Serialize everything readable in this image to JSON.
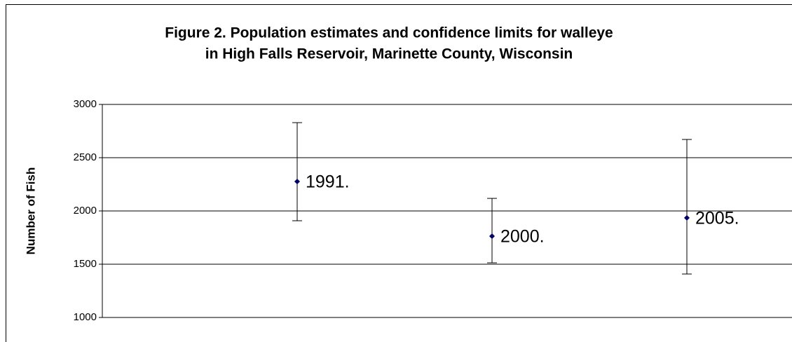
{
  "chart_data": {
    "type": "errorbar",
    "title": [
      "Figure 2. Population estimates and confidence limits for walleye",
      "in High Falls Reservoir, Marinette County, Wisconsin"
    ],
    "y_label": "Number of Fish",
    "categories": [
      "1991.",
      "2000.",
      "2005."
    ],
    "values": [
      2276,
      1763,
      1935
    ],
    "upper": [
      2829,
      2118,
      2671
    ],
    "lower": [
      1908,
      1513,
      1408
    ],
    "color": "#000066",
    "ylim": [
      1000,
      3000
    ],
    "yticks": [
      1000,
      1500,
      2000,
      2500,
      3000
    ],
    "grid": true
  }
}
